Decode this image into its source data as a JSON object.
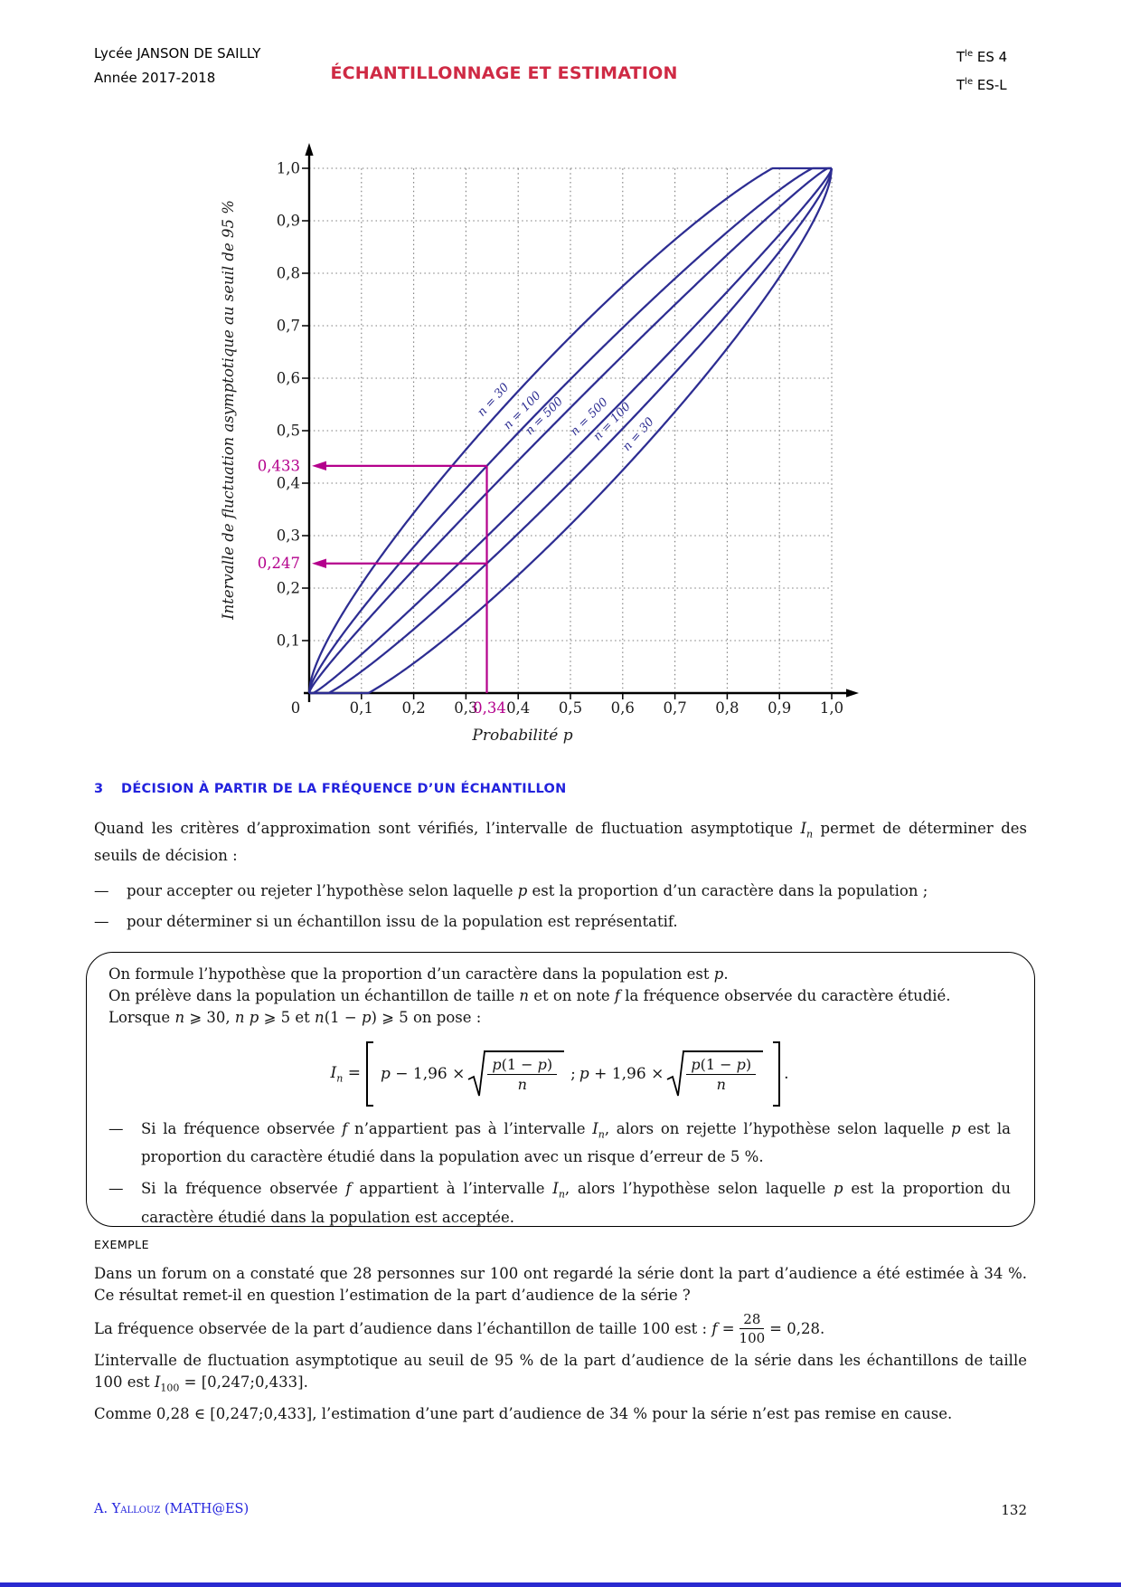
{
  "header": {
    "school": "Lycée JANSON DE SAILLY",
    "year": "Année 2017-2018",
    "title": "ÉCHANTILLONNAGE ET ESTIMATION",
    "class1_pre": "T",
    "class1_sup": "le",
    "class1_post": " ES 4",
    "class2_pre": "T",
    "class2_sup": "le",
    "class2_post": " ES-L"
  },
  "section": {
    "number": "3",
    "title": "DÉCISION À PARTIR DE LA FRÉQUENCE D’UN ÉCHANTILLON"
  },
  "intro": {
    "dash": "—",
    "p1": [
      [
        "r",
        "Quand les critères d’approximation sont vérifiés, l’intervalle de fluctuation asymptotique "
      ],
      [
        "i",
        "I"
      ],
      [
        "isub",
        "n"
      ],
      [
        "r",
        " permet de déterminer des seuils de décision :"
      ]
    ],
    "items": [
      [
        [
          "r",
          "pour accepter ou rejeter l’hypothèse selon laquelle "
        ],
        [
          "i",
          "p"
        ],
        [
          "r",
          " est la proportion d’un caractère dans la population ;"
        ]
      ],
      [
        [
          "r",
          "pour déterminer si un échantillon issu de la population est représentatif."
        ]
      ]
    ]
  },
  "box": {
    "dash": "—",
    "lines": [
      [
        [
          "r",
          "On formule l’hypothèse que la proportion d’un caractère dans la population est "
        ],
        [
          "i",
          "p"
        ],
        [
          "r",
          "."
        ]
      ],
      [
        [
          "r",
          "On prélève dans la population un échantillon de taille "
        ],
        [
          "i",
          "n"
        ],
        [
          "r",
          " et on note "
        ],
        [
          "i",
          "f"
        ],
        [
          "r",
          " la fréquence observée du caractère étudié."
        ]
      ],
      [
        [
          "r",
          "Lorsque "
        ],
        [
          "i",
          "n"
        ],
        [
          "r",
          " ⩾ 30, "
        ],
        [
          "i",
          "n p"
        ],
        [
          "r",
          " ⩾ 5 et "
        ],
        [
          "i",
          "n"
        ],
        [
          "r",
          "(1 − "
        ],
        [
          "i",
          "p"
        ],
        [
          "r",
          ") ⩾ 5 on pose :"
        ]
      ]
    ],
    "formula": {
      "lhs": [
        [
          "i",
          "I"
        ],
        [
          "isub",
          "n"
        ],
        [
          "r",
          " = "
        ]
      ],
      "left_term": [
        [
          "i",
          "p"
        ],
        [
          "r",
          " − 1,96 × "
        ]
      ],
      "frac_num": [
        [
          "i",
          "p"
        ],
        [
          "r",
          "(1 − "
        ],
        [
          "i",
          "p"
        ],
        [
          "r",
          ")"
        ]
      ],
      "frac_den": [
        [
          "i",
          "n"
        ]
      ],
      "sep": ";",
      "right_term": [
        [
          "i",
          "p"
        ],
        [
          "r",
          " + 1,96 × "
        ]
      ],
      "period": "."
    },
    "items": [
      [
        [
          "r",
          "Si la fréquence observée "
        ],
        [
          "i",
          "f"
        ],
        [
          "r",
          " n’appartient pas à l’intervalle "
        ],
        [
          "i",
          "I"
        ],
        [
          "isub",
          "n"
        ],
        [
          "r",
          ", alors on rejette l’hypothèse selon laquelle "
        ],
        [
          "i",
          "p"
        ],
        [
          "r",
          " est la proportion du caractère étudié dans la population avec un risque d’erreur de 5 %."
        ]
      ],
      [
        [
          "r",
          "Si la fréquence observée "
        ],
        [
          "i",
          "f"
        ],
        [
          "r",
          " appartient à l’intervalle "
        ],
        [
          "i",
          "I"
        ],
        [
          "isub",
          "n"
        ],
        [
          "r",
          ", alors l’hypothèse selon laquelle "
        ],
        [
          "i",
          "p"
        ],
        [
          "r",
          " est la proportion du caractère étudié dans la population est acceptée."
        ]
      ]
    ]
  },
  "example": {
    "label": "EXEMPLE",
    "p1": [
      [
        "r",
        "Dans un forum on a constaté que 28 personnes sur 100 ont regardé la série dont la part d’audience a été estimée à 34 %. Ce résultat remet-il en question l’estimation de la part d’audience de la série ?"
      ]
    ],
    "p2_pre": [
      [
        "r",
        "La fréquence observée de la part d’audience dans l’échantillon de taille 100 est : "
      ],
      [
        "i",
        "f"
      ],
      [
        "r",
        " = "
      ]
    ],
    "p2_num": "28",
    "p2_den": "100",
    "p2_post": [
      [
        "r",
        " = 0,28."
      ]
    ],
    "p3": [
      [
        "r",
        "L’intervalle de fluctuation asymptotique au seuil de 95 % de la part d’audience de la série dans les échantillons de taille 100 est "
      ],
      [
        "i",
        "I"
      ],
      [
        "sub",
        "100"
      ],
      [
        "r",
        " = [0,247;0,433]."
      ]
    ],
    "p4": [
      [
        "r",
        "Comme 0,28 ∈ [0,247;0,433], l’estimation d’une part d’audience de 34 % pour la série n’est pas remise en cause."
      ]
    ]
  },
  "footer": {
    "author": "A. Yallouz (MATH@ES)",
    "page": "132"
  },
  "chart_data": {
    "type": "line",
    "xlabel": "Probabilité p",
    "ylabel": "Intervalle de fluctuation asymptotique au seuil de 95 %",
    "xlim": [
      0,
      1
    ],
    "ylim": [
      0,
      1
    ],
    "grid": "dotted",
    "z": 1.96,
    "x_tick_values": [
      0.1,
      0.2,
      0.3,
      0.4,
      0.5,
      0.6,
      0.7,
      0.8,
      0.9,
      1.0
    ],
    "x_tick_labels": [
      "0,1",
      "0,2",
      "0,3",
      "0,4",
      "0,5",
      "0,6",
      "0,7",
      "0,8",
      "0,9",
      "1,0"
    ],
    "y_tick_values": [
      0.1,
      0.2,
      0.3,
      0.4,
      0.5,
      0.6,
      0.7,
      0.8,
      0.9,
      1.0
    ],
    "y_tick_labels": [
      "0,1",
      "0,2",
      "0,3",
      "0,4",
      "0,5",
      "0,6",
      "0,7",
      "0,8",
      "0,9",
      "1,0"
    ],
    "origin_label": "0",
    "series": [
      {
        "name": "n = 30",
        "n": 30,
        "bound": "upper",
        "label_p": 0.37
      },
      {
        "name": "n = 100",
        "n": 100,
        "bound": "upper",
        "label_p": 0.425
      },
      {
        "name": "n = 500",
        "n": 500,
        "bound": "upper",
        "label_p": 0.467
      },
      {
        "name": "n = 500",
        "n": 500,
        "bound": "lower",
        "label_p": 0.553
      },
      {
        "name": "n = 100",
        "n": 100,
        "bound": "lower",
        "label_p": 0.597
      },
      {
        "name": "n = 30",
        "n": 30,
        "bound": "lower",
        "label_p": 0.648
      }
    ],
    "annotation": {
      "p_label": "0,34",
      "p_value": 0.34,
      "upper_label": "0,433",
      "upper_value": 0.433,
      "lower_label": "0,247",
      "lower_value": 0.247,
      "color": "#b4008c"
    },
    "colors": {
      "curve": "#2d2d92",
      "axis": "#000000",
      "grid": "#7b7b7b"
    }
  }
}
